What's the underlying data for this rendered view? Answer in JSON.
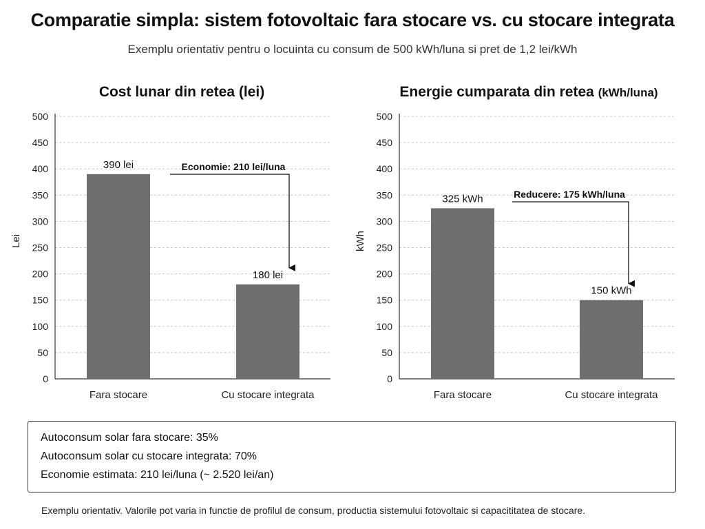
{
  "title": "Comparatie simpla: sistem fotovoltaic fara stocare vs. cu stocare integrata",
  "subtitle": "Exemplu orientativ pentru o locuinta cu consum de 500 kWh/luna si pret de 1,2 lei/kWh",
  "colors": {
    "bar": "#6e6e6e",
    "grid": "#c8c8c8",
    "axis": "#333333"
  },
  "chart_data": [
    {
      "type": "bar",
      "title": "Cost lunar din retea (lei)",
      "title_unit": "",
      "ylabel": "Lei",
      "ylim": [
        0,
        500
      ],
      "yticks": [
        0,
        50,
        100,
        150,
        200,
        250,
        300,
        350,
        400,
        450,
        500
      ],
      "grid": true,
      "categories": [
        "Fara stocare",
        "Cu stocare integrata"
      ],
      "values": [
        390,
        180
      ],
      "data_labels": [
        "390 lei",
        "180 lei"
      ],
      "annotation": "Economie: 210 lei/luna"
    },
    {
      "type": "bar",
      "title": "Energie cumparata din retea",
      "title_unit": "(kWh/luna)",
      "ylabel": "kWh",
      "ylim": [
        0,
        500
      ],
      "yticks": [
        0,
        50,
        100,
        150,
        200,
        250,
        300,
        350,
        400,
        450,
        500
      ],
      "grid": true,
      "categories": [
        "Fara stocare",
        "Cu stocare integrata"
      ],
      "values": [
        325,
        150
      ],
      "data_labels": [
        "325 kWh",
        "150 kWh"
      ],
      "annotation": "Reducere: 175 kWh/luna"
    }
  ],
  "summary": [
    "Autoconsum solar fara stocare: 35%",
    "Autoconsum solar cu stocare integrata: 70%",
    "Economie estimata: 210 lei/luna (~ 2.520 lei/an)"
  ],
  "footnote": "Exemplu orientativ. Valorile pot varia in functie de profilul de consum, productia sistemului fotovoltaic si capacititatea de stocare."
}
